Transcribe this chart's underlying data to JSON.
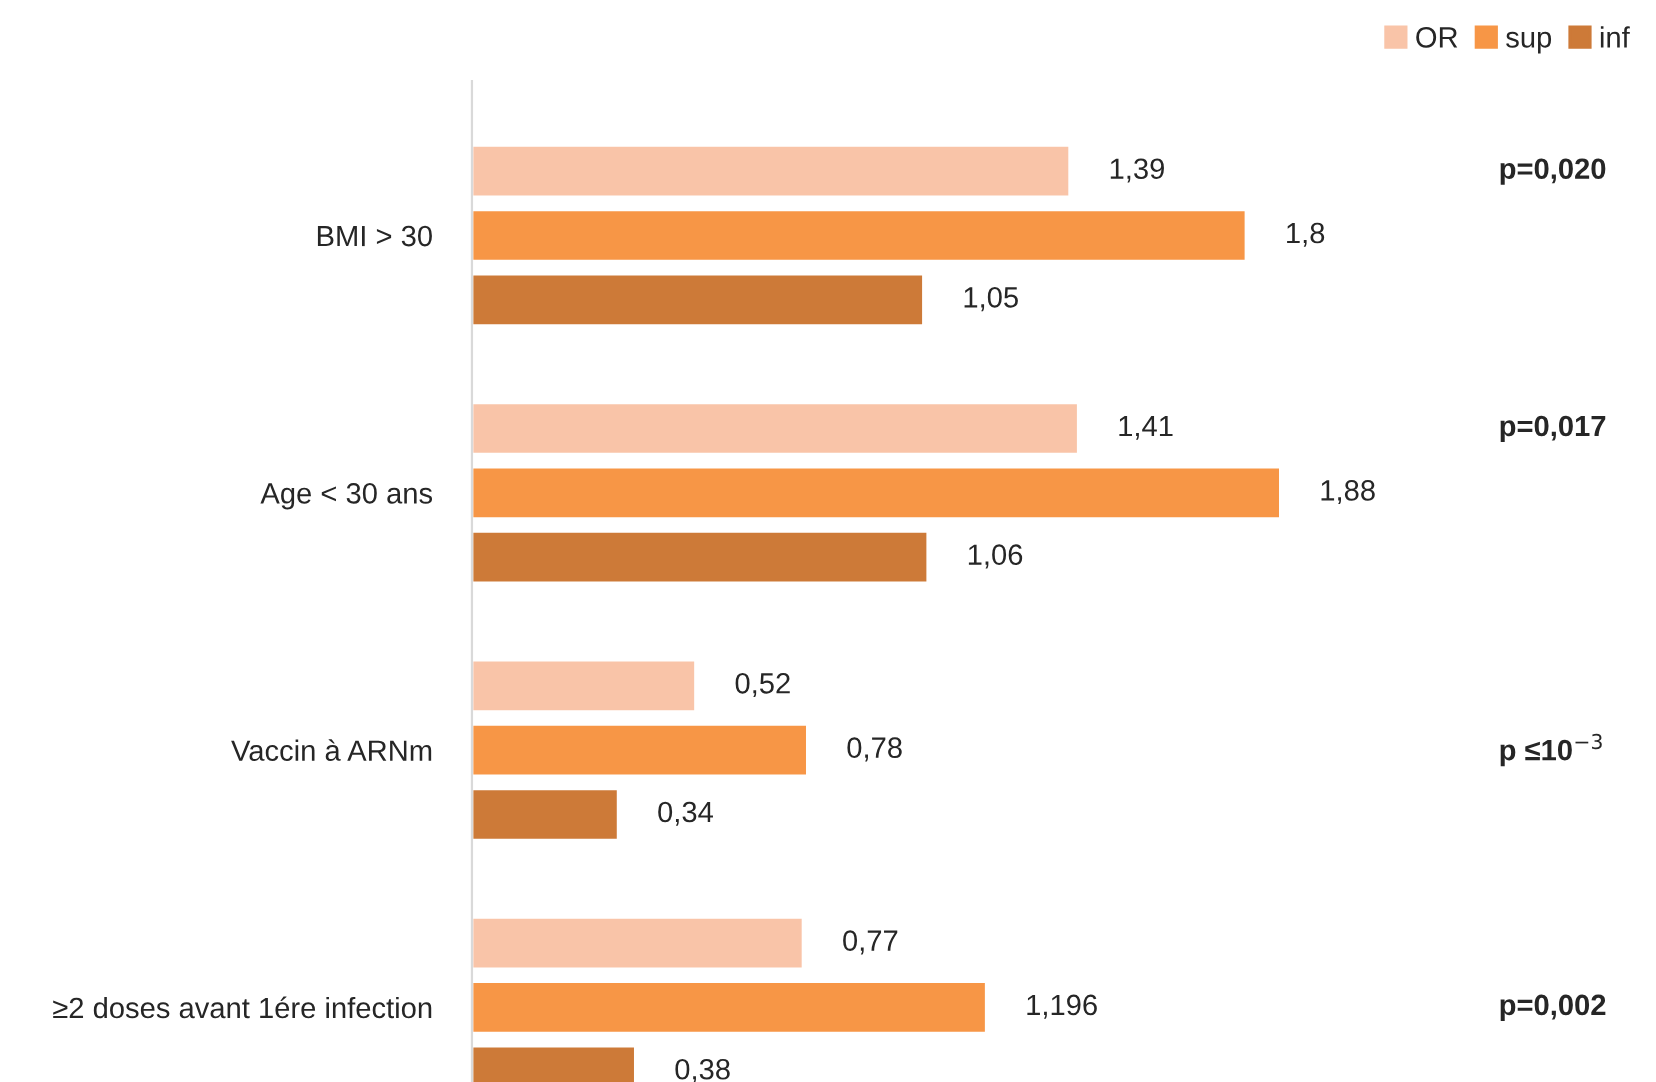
{
  "chart_data": {
    "type": "bar",
    "orientation": "horizontal",
    "categories": [
      "BMI > 30",
      "Age < 30 ans",
      "Vaccin à ARNm",
      "≥2 doses avant 1ére infection"
    ],
    "series": [
      {
        "name": "OR",
        "color": "#f9c4a8",
        "values": [
          1.39,
          1.41,
          0.52,
          0.77
        ],
        "value_labels": [
          "1,39",
          "1,41",
          "0,52",
          "0,77"
        ]
      },
      {
        "name": "sup",
        "color": "#f79646",
        "values": [
          1.8,
          1.88,
          0.78,
          1.196
        ],
        "value_labels": [
          "1,8",
          "1,88",
          "0,78",
          "1,196"
        ]
      },
      {
        "name": "inf",
        "color": "#cd7a38",
        "values": [
          1.05,
          1.06,
          0.34,
          0.38
        ],
        "value_labels": [
          "1,05",
          "1,06",
          "0,34",
          "0,38"
        ]
      }
    ],
    "annotations": [
      "p=0,020",
      "p=0,017",
      "p ≤10$^{−3}$",
      "p=0,002"
    ],
    "legend": "top right",
    "grid": false
  }
}
